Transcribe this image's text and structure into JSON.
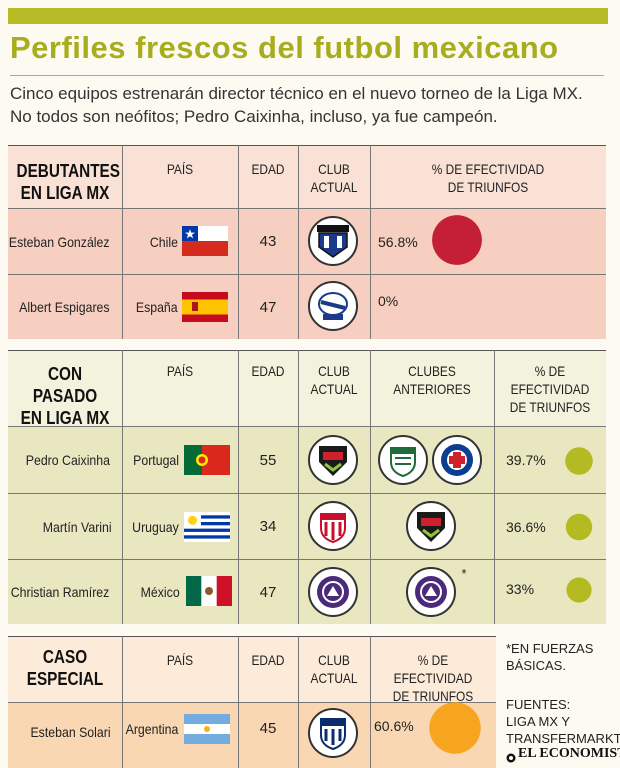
{
  "header": {
    "title": "Perfiles frescos del futbol mexicano",
    "subtitle_line1": "Cinco equipos estrenarán director técnico en el nuevo torneo de la Liga MX.",
    "subtitle_line2": "No todos son neófitos; Pedro Caixinha, incluso, ya fue campeón."
  },
  "columns": {
    "pais": "PAÍS",
    "edad": "EDAD",
    "club_actual_1": "CLUB",
    "club_actual_2": "ACTUAL",
    "efect_1": "% DE EFECTIVIDAD",
    "efect_2": "DE TRIUNFOS",
    "anteriores_1": "CLUBES",
    "anteriores_2": "ANTERIORES"
  },
  "section1": {
    "title_1": "DEBUTANTES",
    "title_2": "EN LIGA MX",
    "rows": [
      {
        "name": "Esteban González",
        "country": "Chile",
        "age": "43",
        "club": "Querétaro",
        "pct": "56.8%",
        "pct_value": 56.8
      },
      {
        "name": "Albert Espigares",
        "country": "España",
        "age": "47",
        "club": "Puebla",
        "pct": "0%",
        "pct_value": 0
      }
    ]
  },
  "section2": {
    "title_1": "CON PASADO",
    "title_2": "EN LIGA MX",
    "rows": [
      {
        "name": "Pedro Caixinha",
        "country": "Portugal",
        "age": "55",
        "club": "Juárez",
        "previous": [
          "Santos",
          "Cruz Azul"
        ],
        "pct": "39.7%",
        "pct_value": 39.7
      },
      {
        "name": "Martín Varini",
        "country": "Uruguay",
        "age": "34",
        "club": "Necaxa",
        "previous": [
          "Juárez"
        ],
        "pct": "36.6%",
        "pct_value": 36.6
      },
      {
        "name": "Christian Ramírez",
        "country": "México",
        "age": "47",
        "club": "Mazatlán",
        "previous": [
          "Mazatlán"
        ],
        "previous_mark": "*",
        "pct": "33%",
        "pct_value": 33
      }
    ]
  },
  "section3": {
    "title_1": "CASO",
    "title_2": "ESPECIAL",
    "rows": [
      {
        "name": "Esteban Solari",
        "country": "Argentina",
        "age": "45",
        "club": "Pachuca",
        "pct": "60.6%",
        "pct_value": 60.6
      }
    ]
  },
  "notes": {
    "footnote_1": "*EN FUERZAS",
    "footnote_2": "BÁSICAS.",
    "sources_1": "FUENTES:",
    "sources_2": "LIGA MX Y",
    "sources_3": "TRANSFERMARKT",
    "brand": "EL ECONOMISTA"
  },
  "colors": {
    "accent": "#b5bb25",
    "section1_header": "#f9e1d6",
    "section1_row": "#f6cfc0",
    "section2_header": "#f3f2dd",
    "section2_row": "#e9e7c0",
    "section3_header": "#fdebd9",
    "section3_row": "#fad7b3",
    "dot_red": "#c51f35",
    "dot_green": "#b4bb22",
    "dot_orange": "#f7a41e"
  }
}
